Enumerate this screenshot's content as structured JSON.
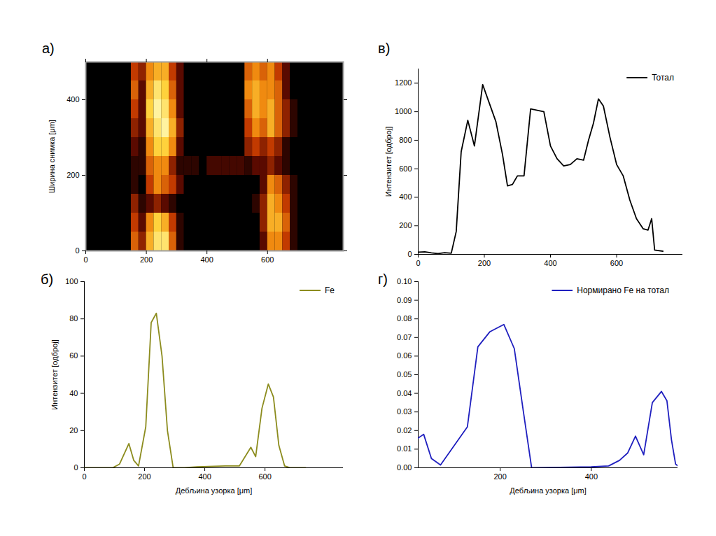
{
  "chart_data": [
    {
      "type": "heatmap",
      "panel_label": "а)",
      "y_label": "Ширина снимка [μm]",
      "xlim": [
        0,
        850
      ],
      "xticks": [
        0,
        200,
        400,
        600
      ],
      "ylim": [
        0,
        500
      ],
      "yticks": [
        0,
        200,
        400
      ],
      "x_bins": [
        0,
        25,
        50,
        75,
        100,
        125,
        150,
        175,
        200,
        225,
        250,
        275,
        300,
        325,
        350,
        375,
        400,
        425,
        450,
        475,
        500,
        525,
        550,
        575,
        600,
        625,
        650,
        675,
        700,
        725,
        750,
        775,
        800,
        825,
        850
      ],
      "y_bins": [
        0,
        50,
        100,
        150,
        200,
        250,
        300,
        350,
        400,
        450,
        500
      ],
      "cells": [
        [
          0,
          0,
          0,
          0,
          0,
          0,
          0,
          0,
          0,
          0
        ],
        [
          0,
          0,
          0,
          0,
          0,
          0,
          0,
          0,
          0,
          0
        ],
        [
          0,
          0,
          0,
          0,
          0,
          0,
          0,
          0,
          0,
          0
        ],
        [
          0,
          0,
          0,
          0,
          0,
          0,
          0,
          0,
          0,
          0
        ],
        [
          0,
          0,
          0,
          0,
          0,
          0,
          0,
          0,
          0,
          0
        ],
        [
          0,
          0,
          0,
          0,
          0,
          0,
          0,
          0,
          0,
          0
        ],
        [
          0.5,
          0.4,
          0.3,
          0.1,
          0.1,
          0.2,
          0.3,
          0.4,
          0.5,
          0.4
        ],
        [
          0.3,
          0.2,
          0.1,
          0,
          0.1,
          0.1,
          0.2,
          0.2,
          0.2,
          0.3
        ],
        [
          0.7,
          0.6,
          0.2,
          0.4,
          0.5,
          0.6,
          0.7,
          0.8,
          0.7,
          0.6
        ],
        [
          0.9,
          0.8,
          0.3,
          0.6,
          0.6,
          0.8,
          0.9,
          1,
          0.9,
          0.7
        ],
        [
          0.9,
          0.7,
          0.2,
          0.5,
          0.6,
          0.8,
          1,
          0.9,
          0.8,
          0.7
        ],
        [
          0.5,
          0.4,
          0.1,
          0.4,
          0.3,
          0.6,
          0.7,
          0.6,
          0.5,
          0.4
        ],
        [
          0.1,
          0.1,
          0,
          0.2,
          0.1,
          0.2,
          0.3,
          0.2,
          0.2,
          0.2
        ],
        [
          0,
          0,
          0,
          0,
          0.1,
          0,
          0,
          0,
          0,
          0
        ],
        [
          0,
          0,
          0,
          0,
          0.1,
          0,
          0,
          0,
          0,
          0
        ],
        [
          0,
          0,
          0,
          0,
          0,
          0,
          0,
          0,
          0,
          0
        ],
        [
          0,
          0,
          0,
          0,
          0.15,
          0,
          0,
          0,
          0,
          0
        ],
        [
          0,
          0,
          0,
          0,
          0.15,
          0,
          0,
          0,
          0,
          0
        ],
        [
          0,
          0,
          0,
          0,
          0.15,
          0,
          0,
          0,
          0,
          0
        ],
        [
          0,
          0,
          0,
          0,
          0.15,
          0,
          0,
          0,
          0,
          0
        ],
        [
          0,
          0,
          0,
          0,
          0.15,
          0,
          0,
          0,
          0,
          0
        ],
        [
          0,
          0,
          0,
          0,
          0.1,
          0.3,
          0.4,
          0.5,
          0.6,
          0.5
        ],
        [
          0,
          0,
          0.1,
          0,
          0.2,
          0.4,
          0.6,
          0.7,
          0.7,
          0.6
        ],
        [
          0.2,
          0.3,
          0.3,
          0.2,
          0.2,
          0.3,
          0.5,
          0.6,
          0.6,
          0.5
        ],
        [
          0.6,
          0.7,
          0.7,
          0.6,
          0.3,
          0.4,
          0.7,
          0.7,
          0.6,
          0.6
        ],
        [
          0.6,
          0.7,
          0.6,
          0.5,
          0.2,
          0.3,
          0.5,
          0.5,
          0.5,
          0.4
        ],
        [
          0.4,
          0.5,
          0.4,
          0.3,
          0.1,
          0.1,
          0.3,
          0.3,
          0.2,
          0.2
        ],
        [
          0.1,
          0.1,
          0.1,
          0.1,
          0,
          0,
          0.1,
          0.1,
          0,
          0
        ],
        [
          0,
          0,
          0,
          0,
          0,
          0,
          0,
          0,
          0,
          0
        ],
        [
          0,
          0,
          0,
          0,
          0,
          0,
          0,
          0,
          0,
          0
        ],
        [
          0,
          0,
          0,
          0,
          0,
          0,
          0,
          0,
          0,
          0
        ],
        [
          0,
          0,
          0,
          0,
          0,
          0,
          0,
          0,
          0,
          0
        ],
        [
          0,
          0,
          0,
          0,
          0,
          0,
          0,
          0,
          0,
          0
        ],
        [
          0,
          0,
          0,
          0,
          0,
          0,
          0,
          0,
          0,
          0
        ]
      ]
    },
    {
      "type": "line",
      "panel_label": "б)",
      "x_label": "Дебљина узорка [μm]",
      "y_label": "Интензитет [одброј]",
      "xlim": [
        0,
        860
      ],
      "xticks": [
        0,
        200,
        400,
        600
      ],
      "ylim": [
        0,
        100
      ],
      "yticks": [
        0,
        20,
        40,
        60,
        80,
        100
      ],
      "legend": "top-right",
      "x": [
        0,
        47,
        94,
        117,
        148,
        164,
        180,
        204,
        222,
        239,
        258,
        276,
        295,
        333,
        375,
        468,
        515,
        534,
        553,
        569,
        590,
        611,
        628,
        646,
        665,
        684,
        735
      ],
      "series": [
        {
          "name": "Fe",
          "color": "#8c8c1e",
          "values": [
            0,
            0,
            0,
            2,
            13,
            4,
            1,
            22,
            78,
            83,
            60,
            20,
            0,
            0,
            0.5,
            1,
            1,
            6,
            11,
            6,
            32,
            45,
            38,
            12,
            1,
            0,
            0
          ]
        }
      ]
    },
    {
      "type": "line",
      "panel_label": "в)",
      "y_label": "Интензитет [одброј]",
      "xlim": [
        0,
        800
      ],
      "xticks": [
        0,
        200,
        400,
        600
      ],
      "ylim": [
        0,
        1300
      ],
      "yticks": [
        0,
        200,
        400,
        600,
        800,
        1000,
        1200
      ],
      "legend": "top-right",
      "x": [
        0,
        20,
        40,
        60,
        80,
        100,
        115,
        130,
        150,
        170,
        195,
        215,
        235,
        255,
        270,
        285,
        300,
        320,
        340,
        360,
        380,
        400,
        420,
        440,
        460,
        480,
        500,
        515,
        530,
        545,
        560,
        580,
        600,
        620,
        640,
        660,
        680,
        695,
        706,
        715,
        740
      ],
      "series": [
        {
          "name": "Тотал",
          "color": "#000000",
          "values": [
            15,
            18,
            10,
            5,
            12,
            8,
            160,
            720,
            940,
            760,
            1190,
            1060,
            930,
            700,
            480,
            490,
            550,
            550,
            1020,
            1010,
            1000,
            760,
            670,
            620,
            630,
            670,
            660,
            800,
            920,
            1090,
            1040,
            820,
            630,
            550,
            380,
            250,
            180,
            170,
            250,
            30,
            22
          ]
        }
      ]
    },
    {
      "type": "line",
      "panel_label": "г)",
      "x_label": "Дебљина узорка [μm]",
      "xlim": [
        20,
        590
      ],
      "xticks": [
        200,
        400
      ],
      "ylim": [
        0,
        0.1
      ],
      "yticks": [
        {
          "value": 0,
          "label": "0.00"
        },
        {
          "value": 0.01,
          "label": "0.01"
        },
        {
          "value": 0.02,
          "label": "0.02"
        },
        {
          "value": 0.03,
          "label": "0.03"
        },
        {
          "value": 0.04,
          "label": "0.04"
        },
        {
          "value": 0.05,
          "label": "0.05"
        },
        {
          "value": 0.06,
          "label": "0.06"
        },
        {
          "value": 0.07,
          "label": "0.07"
        },
        {
          "value": 0.08,
          "label": "0.08"
        },
        {
          "value": 0.09,
          "label": "0.09"
        },
        {
          "value": 0.1,
          "label": "0.10"
        }
      ],
      "legend": "top-right",
      "x": [
        20,
        32,
        49,
        69,
        128,
        151,
        177,
        208,
        231,
        251,
        269,
        331,
        400,
        438,
        462,
        480,
        497,
        515,
        534,
        554,
        566,
        576,
        585,
        590
      ],
      "series": [
        {
          "name": "Нормирано Fe на тотал",
          "color": "#1f1fbf",
          "values": [
            0.016,
            0.018,
            0.005,
            0.0015,
            0.022,
            0.065,
            0.073,
            0.077,
            0.064,
            0.03,
            0,
            0.0002,
            0.0005,
            0.001,
            0.004,
            0.008,
            0.017,
            0.007,
            0.035,
            0.041,
            0.036,
            0.015,
            0.002,
            0.001
          ]
        }
      ]
    }
  ]
}
